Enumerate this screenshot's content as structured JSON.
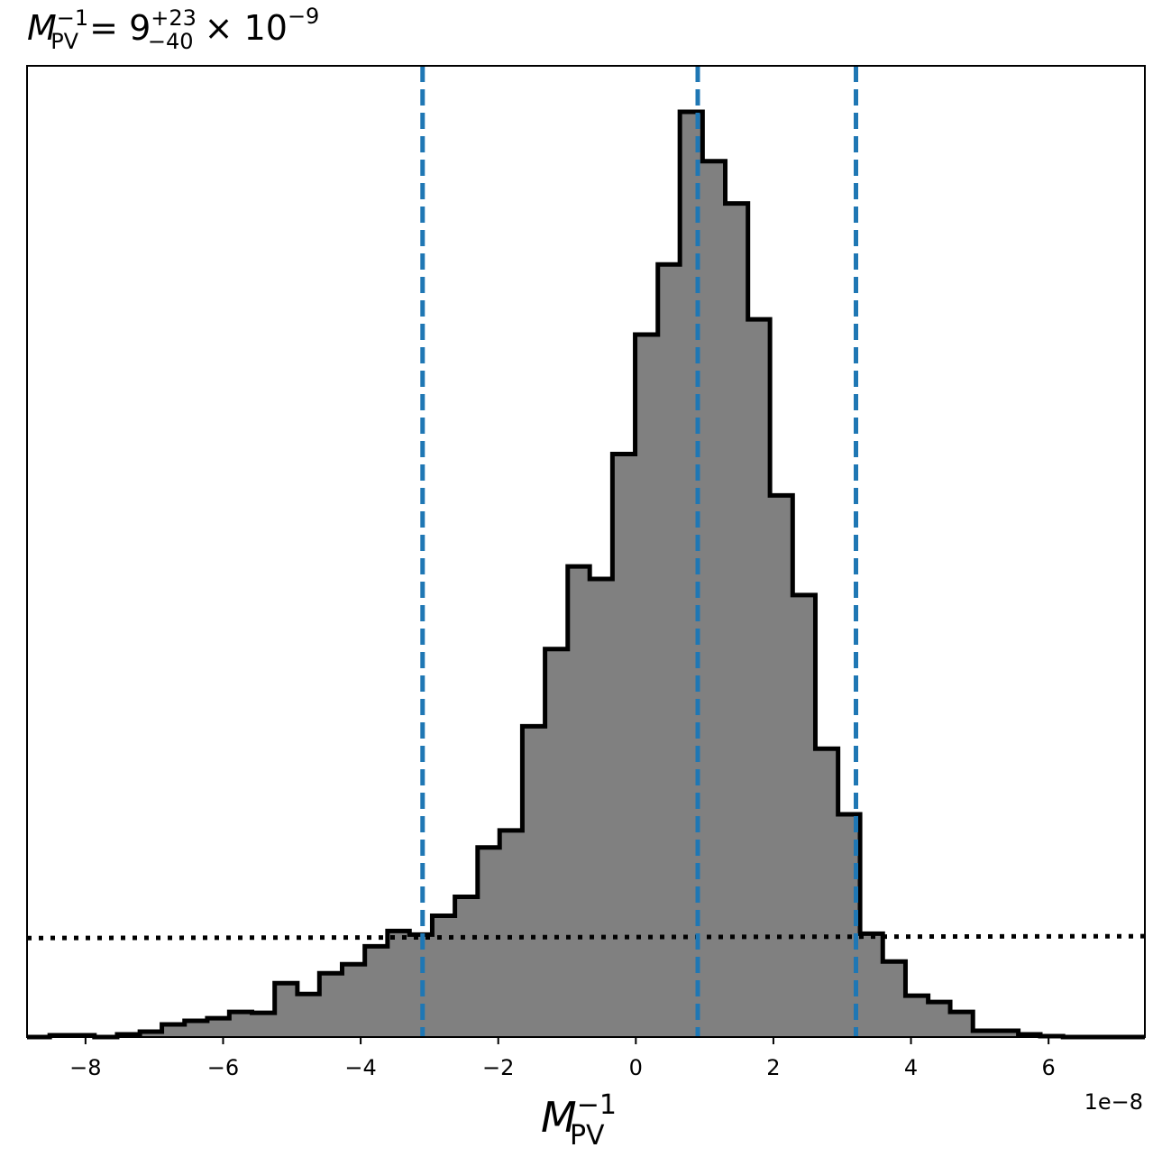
{
  "chart_data": {
    "type": "bar",
    "title": {
      "main": "M",
      "main_sub": "PV",
      "main_sup": "−1",
      "equals": " = 9",
      "err_plus": "+23",
      "err_minus": "−40",
      "times": " × 10",
      "exp": "−9"
    },
    "xlabel": {
      "main": "M",
      "sub": "PV",
      "sup": "−1"
    },
    "x_offset_label": "1e−8",
    "xlim": [
      -8.85,
      7.4
    ],
    "ylim": [
      0,
      1.0
    ],
    "y_axis_visible": false,
    "x_ticks": [
      {
        "value": -8,
        "label": "−8"
      },
      {
        "value": -6,
        "label": "−6"
      },
      {
        "value": -4,
        "label": "−4"
      },
      {
        "value": -2,
        "label": "−2"
      },
      {
        "value": 0,
        "label": "0"
      },
      {
        "value": 2,
        "label": "2"
      },
      {
        "value": 4,
        "label": "4"
      },
      {
        "value": 6,
        "label": "6"
      }
    ],
    "bin_edges": [
      -8.85,
      -8.52,
      -8.2,
      -7.87,
      -7.54,
      -7.21,
      -6.89,
      -6.56,
      -6.23,
      -5.91,
      -5.58,
      -5.25,
      -4.92,
      -4.6,
      -4.27,
      -3.94,
      -3.61,
      -3.29,
      -2.96,
      -2.63,
      -2.3,
      -1.98,
      -1.65,
      -1.32,
      -0.99,
      -0.67,
      -0.34,
      -0.01,
      0.32,
      0.64,
      0.97,
      1.3,
      1.63,
      1.95,
      2.28,
      2.61,
      2.94,
      3.26,
      3.59,
      3.92,
      4.25,
      4.57,
      4.9,
      5.23,
      5.56,
      5.88,
      6.21,
      6.54,
      6.87,
      7.19,
      7.4
    ],
    "counts": [
      0.0,
      0.0019,
      0.0019,
      0.0,
      0.0029,
      0.0058,
      0.0136,
      0.0175,
      0.0204,
      0.0272,
      0.0262,
      0.0582,
      0.0466,
      0.0689,
      0.0787,
      0.0981,
      0.1146,
      0.1107,
      0.1311,
      0.1515,
      0.2049,
      0.2233,
      0.3359,
      0.4194,
      0.5087,
      0.4951,
      0.6301,
      0.7592,
      0.835,
      1.0,
      0.9466,
      0.901,
      0.7757,
      0.5854,
      0.4777,
      0.3117,
      0.2408,
      0.1117,
      0.0816,
      0.0447,
      0.0379,
      0.0272,
      0.0068,
      0.0068,
      0.0029,
      0.001,
      0.0,
      0.0,
      0.0,
      0.0
    ],
    "fill_color": "#808080",
    "edge_color": "#000000",
    "vlines": [
      {
        "x": -3.1,
        "color": "#1f77b4",
        "style": "dashed"
      },
      {
        "x": 0.9,
        "color": "#1f77b4",
        "style": "dashed"
      },
      {
        "x": 3.2,
        "color": "#1f77b4",
        "style": "dashed"
      }
    ],
    "prior_line": {
      "y_left": 0.107,
      "y_right": 0.109,
      "color": "#000000",
      "style": "dotted"
    }
  }
}
